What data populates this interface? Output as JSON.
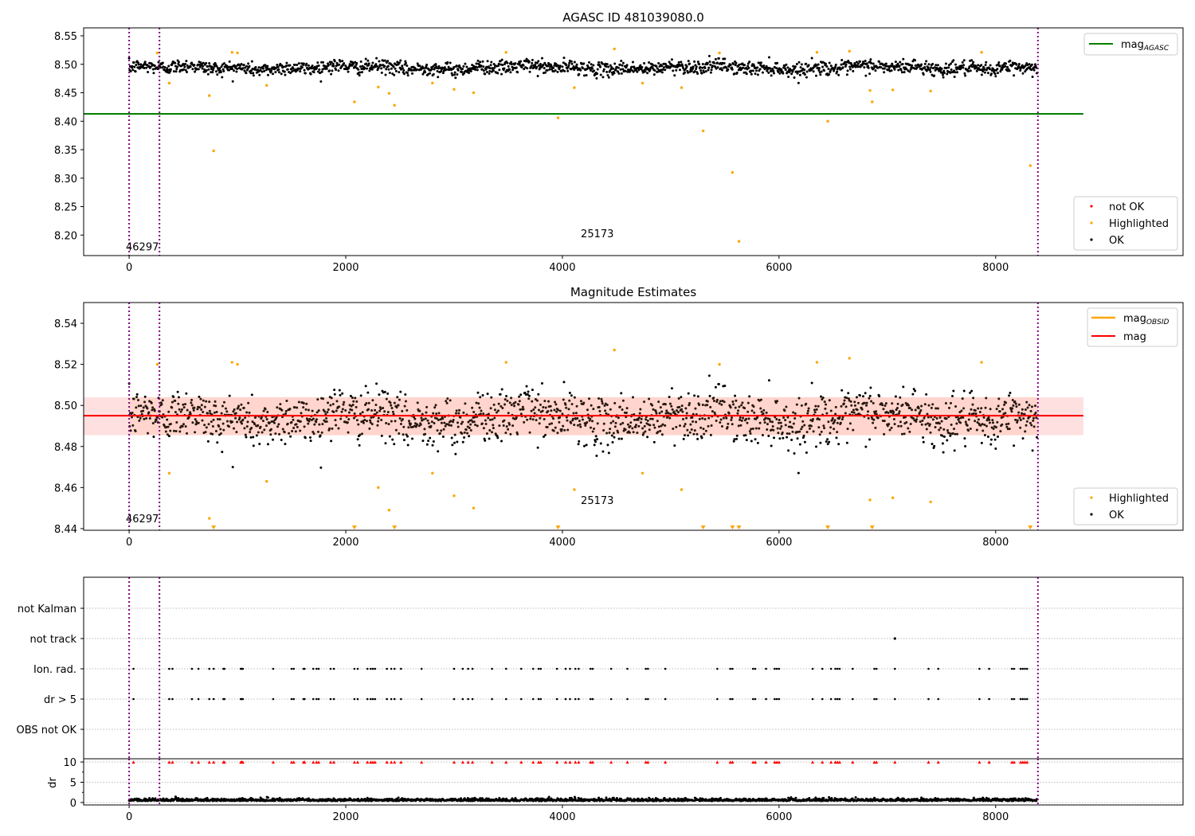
{
  "chart_data": [
    {
      "type": "scatter",
      "title": "AGASC ID 481039080.0",
      "xlim": [
        -420,
        9730
      ],
      "ylim": [
        8.164,
        8.564
      ],
      "xticks": [
        0,
        2000,
        4000,
        6000,
        8000
      ],
      "yticks": [
        8.2,
        8.25,
        8.3,
        8.35,
        8.4,
        8.45,
        8.5,
        8.55
      ],
      "mag_agasc": 8.413,
      "mag_agasc_xrange": [
        -420,
        8810
      ],
      "legend": {
        "line": "mag",
        "line_sub": "AGASC",
        "not_ok": "not OK",
        "highlighted": "Highlighted",
        "ok": "OK"
      },
      "annotations": [
        {
          "text": "46297",
          "x": -30,
          "y": 8.173
        },
        {
          "text": "25173",
          "x": 4170,
          "y": 8.196
        }
      ]
    },
    {
      "type": "scatter",
      "title": "Magnitude Estimates",
      "xlim": [
        -420,
        9730
      ],
      "ylim": [
        8.4392,
        8.5501
      ],
      "xticks": [
        0,
        2000,
        4000,
        6000,
        8000
      ],
      "yticks": [
        8.44,
        8.46,
        8.48,
        8.5,
        8.52,
        8.54
      ],
      "mag": 8.495,
      "mag_band": [
        8.4855,
        8.504
      ],
      "legend": {
        "obsid": "mag",
        "obsid_sub": "OBSID",
        "mag": "mag",
        "highlighted": "Highlighted",
        "ok": "OK"
      },
      "annotations": [
        {
          "text": "46297",
          "x": -30,
          "y": 8.443
        },
        {
          "text": "25173",
          "x": 4170,
          "y": 8.452
        }
      ]
    },
    {
      "type": "scatter",
      "title": "",
      "categories": [
        "not Kalman",
        "not track",
        "Ion. rad.",
        "dr > 5",
        "OBS not OK"
      ],
      "dr_label": "dr",
      "dr_ylim": [
        -0.6,
        10.8
      ],
      "dr_yticks": [
        0,
        5,
        10
      ],
      "xticks": [
        0,
        2000,
        4000,
        6000,
        8000
      ]
    }
  ],
  "ok_points": {
    "count": 1700,
    "x_range": [
      0,
      8380
    ],
    "mean": 8.494,
    "std": 0.0075
  },
  "obs_boundaries": [
    0,
    280,
    8390
  ],
  "highlighted": [
    [
      260,
      8.52
    ],
    [
      370,
      8.467
    ],
    [
      740,
      8.445
    ],
    [
      780,
      8.348
    ],
    [
      950,
      8.521
    ],
    [
      1000,
      8.52
    ],
    [
      1270,
      8.463
    ],
    [
      2080,
      8.434
    ],
    [
      2300,
      8.46
    ],
    [
      2400,
      8.449
    ],
    [
      2450,
      8.428
    ],
    [
      2800,
      8.467
    ],
    [
      3000,
      8.456
    ],
    [
      3180,
      8.45
    ],
    [
      3480,
      8.521
    ],
    [
      3960,
      8.406
    ],
    [
      4110,
      8.459
    ],
    [
      4480,
      8.527
    ],
    [
      4740,
      8.467
    ],
    [
      5100,
      8.459
    ],
    [
      5300,
      8.383
    ],
    [
      5450,
      8.52
    ],
    [
      5570,
      8.31
    ],
    [
      5630,
      8.189
    ],
    [
      6350,
      8.521
    ],
    [
      6450,
      8.4
    ],
    [
      6650,
      8.523
    ],
    [
      6840,
      8.454
    ],
    [
      6860,
      8.434
    ],
    [
      7050,
      8.455
    ],
    [
      7400,
      8.453
    ],
    [
      7870,
      8.521
    ],
    [
      8320,
      8.322
    ]
  ],
  "flag_times": [
    40,
    370,
    400,
    580,
    640,
    740,
    780,
    870,
    880,
    1030,
    1040,
    1050,
    1330,
    1500,
    1520,
    1610,
    1620,
    1700,
    1730,
    1750,
    1860,
    1890,
    2080,
    2110,
    2200,
    2230,
    2250,
    2270,
    2380,
    2420,
    2450,
    2510,
    2700,
    3000,
    3080,
    3130,
    3170,
    3350,
    3480,
    3620,
    3730,
    3780,
    3800,
    3950,
    4030,
    4070,
    4120,
    4150,
    4260,
    4280,
    4450,
    4600,
    4770,
    4790,
    4950,
    5430,
    5550,
    5570,
    5760,
    5780,
    5880,
    5960,
    5980,
    6000,
    6310,
    6400,
    6480,
    6520,
    6540,
    6560,
    6680,
    6880,
    6900,
    7070,
    7380,
    7470,
    7850,
    7940,
    8150,
    8170,
    8230,
    8250,
    8270,
    8290
  ],
  "not_track_times": [
    7070
  ],
  "colors": {
    "ok": "#000000",
    "highlighted": "#ffa500",
    "not_ok": "#ff0000",
    "agasc": "#008000",
    "mag": "#ff0000",
    "band": "#ffcccc",
    "boundary": "#800080"
  }
}
